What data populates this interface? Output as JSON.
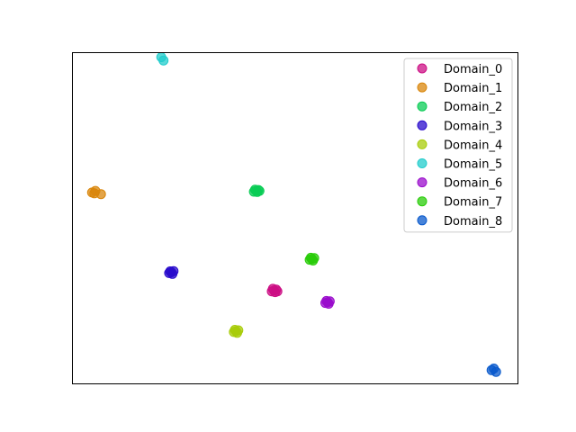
{
  "chart_data": {
    "type": "scatter",
    "title": "",
    "xlabel": "",
    "ylabel": "",
    "xlim": [
      -1.0,
      1.0
    ],
    "ylim": [
      -1.0,
      1.0
    ],
    "grid": false,
    "axis_ticks": false,
    "legend_placement": "top-right",
    "series": [
      {
        "name": "Domain_0",
        "color": "#cc0f84",
        "points": [
          [
            -0.095,
            -0.435
          ],
          [
            -0.085,
            -0.43
          ],
          [
            -0.105,
            -0.44
          ],
          [
            -0.09,
            -0.445
          ],
          [
            -0.1,
            -0.425
          ],
          [
            -0.08,
            -0.44
          ]
        ]
      },
      {
        "name": "Domain_1",
        "color": "#d9860b",
        "points": [
          [
            -0.91,
            0.155
          ],
          [
            -0.895,
            0.165
          ],
          [
            -0.87,
            0.145
          ],
          [
            -0.9,
            0.15
          ]
        ]
      },
      {
        "name": "Domain_2",
        "color": "#0acc55",
        "points": [
          [
            -0.175,
            0.165
          ],
          [
            -0.165,
            0.17
          ],
          [
            -0.185,
            0.16
          ],
          [
            -0.17,
            0.158
          ],
          [
            -0.16,
            0.165
          ],
          [
            -0.18,
            0.172
          ]
        ]
      },
      {
        "name": "Domain_3",
        "color": "#2a0ccc",
        "points": [
          [
            -0.555,
            -0.325
          ],
          [
            -0.545,
            -0.318
          ],
          [
            -0.565,
            -0.33
          ],
          [
            -0.55,
            -0.335
          ],
          [
            -0.56,
            -0.32
          ]
        ]
      },
      {
        "name": "Domain_4",
        "color": "#a8cc0a",
        "points": [
          [
            -0.265,
            -0.68
          ],
          [
            -0.255,
            -0.675
          ],
          [
            -0.275,
            -0.685
          ],
          [
            -0.26,
            -0.69
          ],
          [
            -0.27,
            -0.672
          ]
        ]
      },
      {
        "name": "Domain_5",
        "color": "#22cccc",
        "points": [
          [
            -0.6,
            0.97
          ],
          [
            -0.59,
            0.95
          ]
        ]
      },
      {
        "name": "Domain_6",
        "color": "#9a0ccc",
        "points": [
          [
            0.145,
            -0.505
          ],
          [
            0.155,
            -0.5
          ],
          [
            0.135,
            -0.51
          ],
          [
            0.15,
            -0.515
          ],
          [
            0.14,
            -0.498
          ]
        ]
      },
      {
        "name": "Domain_7",
        "color": "#2acc0a",
        "points": [
          [
            0.075,
            -0.245
          ],
          [
            0.085,
            -0.24
          ],
          [
            0.065,
            -0.25
          ],
          [
            0.08,
            -0.255
          ],
          [
            0.07,
            -0.238
          ]
        ]
      },
      {
        "name": "Domain_8",
        "color": "#0a5acc",
        "points": [
          [
            0.88,
            -0.915
          ],
          [
            0.89,
            -0.905
          ],
          [
            0.9,
            -0.925
          ]
        ]
      }
    ]
  }
}
